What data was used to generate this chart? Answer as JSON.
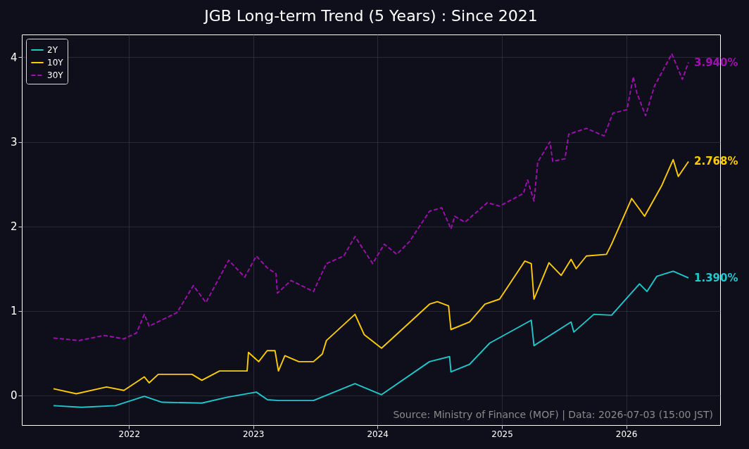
{
  "chart_data": {
    "type": "line",
    "title": "JGB Long-term Trend (5 Years) : Since 2021",
    "xlim": [
      "2021-02-20",
      "2026-10-04"
    ],
    "xticks": [
      "2022",
      "2023",
      "2024",
      "2025",
      "2026"
    ],
    "ylim": [
      -0.35,
      4.27
    ],
    "yticks": [
      0,
      1,
      2,
      3,
      4
    ],
    "grid": true,
    "legend": "top left",
    "series": [
      {
        "name": "2Y",
        "color": "#1fc8cc",
        "line_style": "solid",
        "x": [
          "2021-05-24",
          "2021-08-14",
          "2021-11-22",
          "2022-02-15",
          "2022-04-08",
          "2022-08-03",
          "2022-10-17",
          "2023-01-10",
          "2023-02-12",
          "2023-03-16",
          "2023-06-27",
          "2023-10-27",
          "2024-01-13",
          "2024-06-02",
          "2024-07-31",
          "2024-08-04",
          "2024-09-28",
          "2024-11-26",
          "2025-03-28",
          "2025-04-05",
          "2025-07-23",
          "2025-07-31",
          "2025-09-28",
          "2025-11-19",
          "2026-02-09",
          "2026-03-03",
          "2026-04-01",
          "2026-05-19",
          "2026-07-03"
        ],
        "values": [
          -0.12,
          -0.14,
          -0.12,
          -0.01,
          -0.08,
          -0.09,
          -0.02,
          0.04,
          -0.05,
          -0.06,
          -0.06,
          0.14,
          0.01,
          0.4,
          0.46,
          0.28,
          0.37,
          0.62,
          0.89,
          0.59,
          0.87,
          0.75,
          0.96,
          0.95,
          1.32,
          1.23,
          1.41,
          1.47,
          1.39
        ]
      },
      {
        "name": "10Y",
        "color": "#ffcc00",
        "line_style": "solid",
        "x": [
          "2021-05-24",
          "2021-07-30",
          "2021-10-27",
          "2021-12-17",
          "2022-02-15",
          "2022-03-01",
          "2022-03-28",
          "2022-07-05",
          "2022-08-03",
          "2022-09-24",
          "2022-12-14",
          "2022-12-18",
          "2023-01-17",
          "2023-02-11",
          "2023-03-06",
          "2023-03-16",
          "2023-04-04",
          "2023-05-15",
          "2023-06-27",
          "2023-07-23",
          "2023-08-04",
          "2023-10-27",
          "2023-11-23",
          "2024-01-13",
          "2024-03-13",
          "2024-06-02",
          "2024-06-25",
          "2024-07-28",
          "2024-08-04",
          "2024-09-28",
          "2024-11-12",
          "2024-12-25",
          "2025-03-09",
          "2025-03-28",
          "2025-04-05",
          "2025-05-19",
          "2025-06-24",
          "2025-07-23",
          "2025-08-07",
          "2025-09-06",
          "2025-11-04",
          "2025-11-19",
          "2026-01-17",
          "2026-02-24",
          "2026-04-15",
          "2026-05-19",
          "2026-06-03",
          "2026-07-03"
        ],
        "values": [
          0.08,
          0.02,
          0.1,
          0.06,
          0.22,
          0.15,
          0.25,
          0.25,
          0.18,
          0.29,
          0.29,
          0.51,
          0.4,
          0.53,
          0.53,
          0.29,
          0.47,
          0.4,
          0.4,
          0.49,
          0.65,
          0.96,
          0.72,
          0.56,
          0.78,
          1.08,
          1.11,
          1.06,
          0.78,
          0.87,
          1.08,
          1.14,
          1.59,
          1.56,
          1.14,
          1.57,
          1.42,
          1.61,
          1.5,
          1.65,
          1.67,
          1.79,
          2.33,
          2.12,
          2.48,
          2.79,
          2.59,
          2.768
        ]
      },
      {
        "name": "30Y",
        "color": "#a010b0",
        "line_style": "dashed",
        "x": [
          "2021-05-24",
          "2021-08-07",
          "2021-10-20",
          "2021-12-17",
          "2022-01-23",
          "2022-02-15",
          "2022-03-01",
          "2022-05-22",
          "2022-07-09",
          "2022-08-15",
          "2022-10-21",
          "2022-12-07",
          "2023-01-10",
          "2023-02-11",
          "2023-03-09",
          "2023-03-13",
          "2023-04-22",
          "2023-06-27",
          "2023-08-04",
          "2023-09-24",
          "2023-10-27",
          "2023-12-18",
          "2024-01-21",
          "2024-02-27",
          "2024-04-04",
          "2024-06-02",
          "2024-07-08",
          "2024-08-04",
          "2024-08-15",
          "2024-09-14",
          "2024-11-19",
          "2024-12-25",
          "2025-03-05",
          "2025-03-17",
          "2025-04-05",
          "2025-04-16",
          "2025-05-22",
          "2025-05-30",
          "2025-07-05",
          "2025-07-16",
          "2025-09-06",
          "2025-10-28",
          "2025-11-23",
          "2026-01-03",
          "2026-01-22",
          "2026-02-01",
          "2026-02-27",
          "2026-03-25",
          "2026-05-15",
          "2026-06-15",
          "2026-07-03"
        ],
        "values": [
          0.68,
          0.65,
          0.71,
          0.67,
          0.74,
          0.96,
          0.82,
          0.98,
          1.3,
          1.1,
          1.6,
          1.4,
          1.65,
          1.51,
          1.44,
          1.21,
          1.36,
          1.23,
          1.56,
          1.65,
          1.88,
          1.56,
          1.79,
          1.67,
          1.82,
          2.18,
          2.22,
          1.97,
          2.12,
          2.05,
          2.28,
          2.24,
          2.39,
          2.55,
          2.3,
          2.76,
          3.0,
          2.77,
          2.8,
          3.09,
          3.16,
          3.07,
          3.34,
          3.38,
          3.77,
          3.58,
          3.31,
          3.66,
          4.04,
          3.74,
          3.94
        ]
      }
    ],
    "annotations": [
      {
        "text": "1.390%",
        "x": "2026-07-03",
        "y": 1.39
      },
      {
        "text": "2.768%",
        "x": "2026-07-03",
        "y": 2.768
      },
      {
        "text": "3.940%",
        "x": "2026-07-03",
        "y": 3.94
      },
      "Source: Ministry of Finance (MOF) | Data: 2026-07-03 (15:00 JST)"
    ]
  }
}
